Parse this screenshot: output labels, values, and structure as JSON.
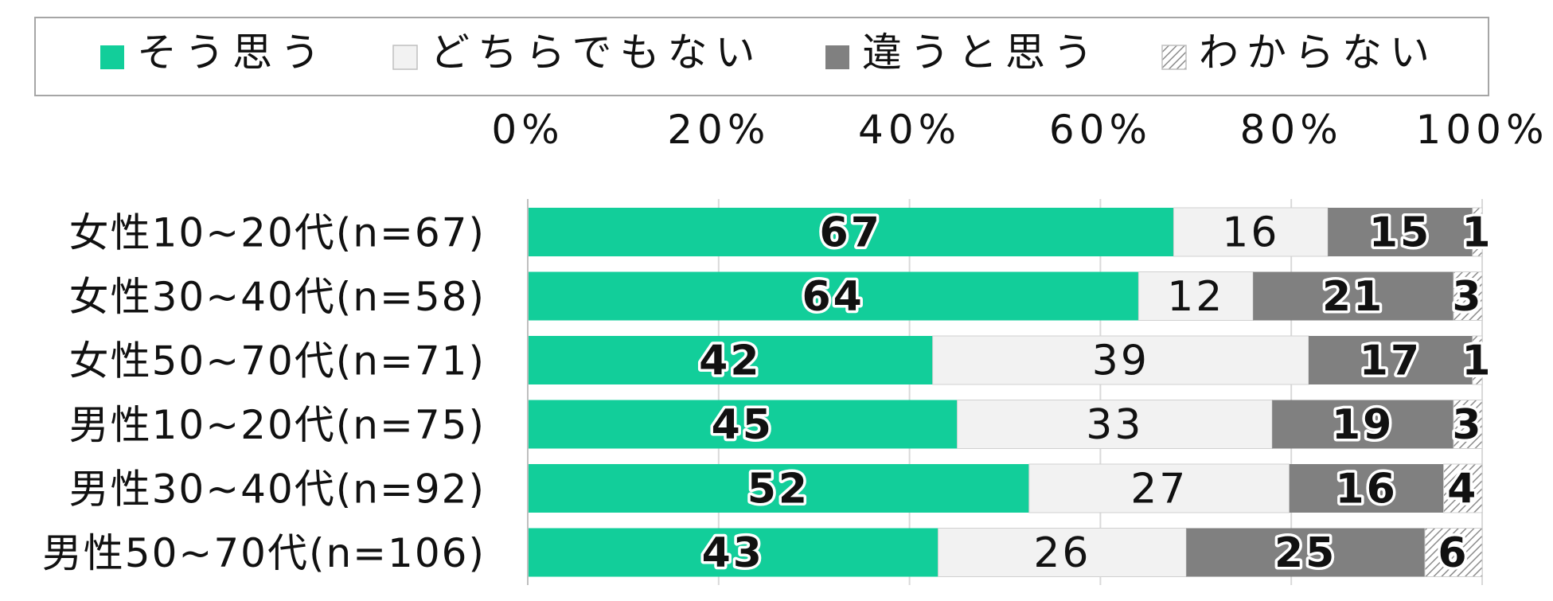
{
  "chart_data": {
    "type": "bar",
    "orientation": "horizontal",
    "stacked": "percent",
    "title": "",
    "xlabel": "",
    "ylabel": "",
    "xlim": [
      0,
      100
    ],
    "x_ticks": [
      "0%",
      "20%",
      "40%",
      "60%",
      "80%",
      "100%"
    ],
    "x_axis_position": "top",
    "grid": true,
    "legend_position": "top",
    "categories": [
      "女性10~20代(n=67)",
      "女性30~40代(n=58)",
      "女性50~70代(n=71)",
      "男性10~20代(n=75)",
      "男性30~40代(n=92)",
      "男性50~70代(n=106)"
    ],
    "series": [
      {
        "name": "そう思う",
        "color": "#12CE9A",
        "pattern": "solid",
        "values": [
          67,
          64,
          42,
          45,
          52,
          43
        ]
      },
      {
        "name": "どちらでもない",
        "color": "#F2F2F2",
        "pattern": "solid",
        "values": [
          16,
          12,
          39,
          33,
          27,
          26
        ]
      },
      {
        "name": "違うと思う",
        "color": "#808080",
        "pattern": "solid",
        "values": [
          15,
          21,
          17,
          19,
          16,
          25
        ]
      },
      {
        "name": "わからない",
        "color": "#A6A6A6",
        "pattern": "hatched",
        "values": [
          1,
          3,
          1,
          3,
          4,
          6
        ]
      }
    ]
  }
}
